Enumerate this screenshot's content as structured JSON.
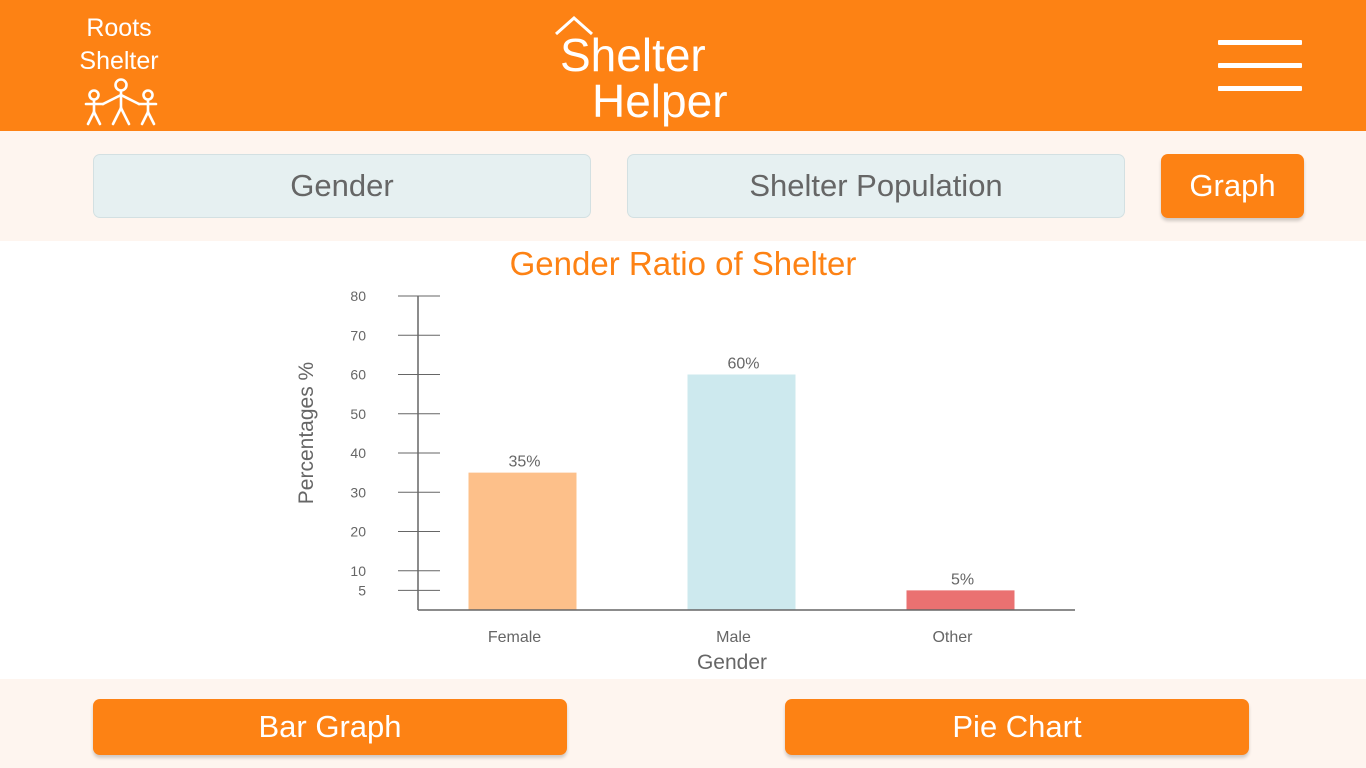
{
  "header": {
    "brand_line1": "Roots",
    "brand_line2": "Shelter",
    "logo_line1": "Shelter",
    "logo_line2": "Helper"
  },
  "filters": {
    "gender_label": "Gender",
    "population_label": "Shelter Population",
    "graph_label": "Graph"
  },
  "chart_data": {
    "type": "bar",
    "title": "Gender Ratio of Shelter",
    "xlabel": "Gender",
    "ylabel": "Percentages  %",
    "categories": [
      "Female",
      "Male",
      "Other"
    ],
    "values": [
      35,
      60,
      5
    ],
    "data_labels": [
      "35%",
      "60%",
      "5%"
    ],
    "colors": [
      "#fdc08a",
      "#cde9ee",
      "#ea7171"
    ],
    "yticks": [
      5,
      10,
      20,
      30,
      40,
      50,
      60,
      70,
      80
    ],
    "ylim": [
      0,
      80
    ],
    "grid": false
  },
  "bottom": {
    "bar_label": "Bar Graph",
    "pie_label": "Pie Chart"
  },
  "colors": {
    "accent": "#fd8214",
    "band": "#fef5ef",
    "pill": "#e6f0f1"
  }
}
